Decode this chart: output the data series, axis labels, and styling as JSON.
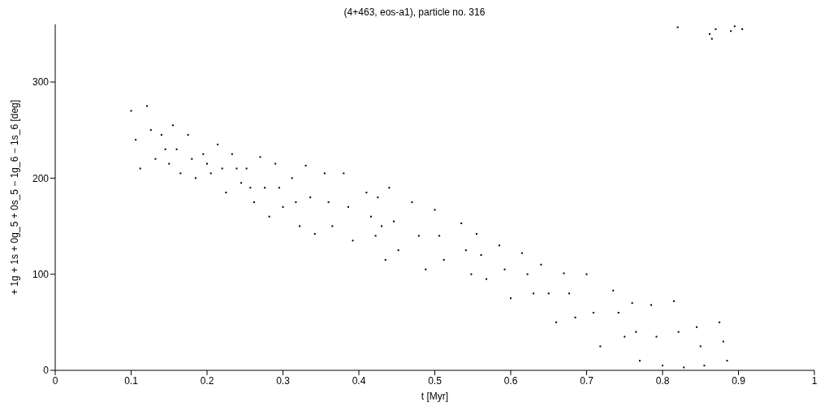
{
  "chart_data": {
    "type": "scatter",
    "title": "(4+463, eos-a1), particle no. 316",
    "xlabel": "t [Myr]",
    "ylabel": "+ 1g + 1s + 0g_5 + 0s_5 − 1g_6 − 1s_6 [deg]",
    "x": [
      0.1,
      0.106,
      0.112,
      0.121,
      0.126,
      0.132,
      0.14,
      0.145,
      0.15,
      0.155,
      0.16,
      0.165,
      0.175,
      0.18,
      0.185,
      0.195,
      0.2,
      0.205,
      0.214,
      0.22,
      0.225,
      0.233,
      0.239,
      0.245,
      0.252,
      0.257,
      0.262,
      0.27,
      0.276,
      0.282,
      0.29,
      0.295,
      0.3,
      0.312,
      0.317,
      0.322,
      0.33,
      0.336,
      0.342,
      0.355,
      0.36,
      0.365,
      0.38,
      0.386,
      0.392,
      0.41,
      0.416,
      0.422,
      0.425,
      0.43,
      0.435,
      0.44,
      0.446,
      0.452,
      0.47,
      0.479,
      0.488,
      0.5,
      0.506,
      0.512,
      0.535,
      0.541,
      0.548,
      0.555,
      0.561,
      0.568,
      0.585,
      0.592,
      0.6,
      0.615,
      0.622,
      0.63,
      0.64,
      0.65,
      0.66,
      0.67,
      0.677,
      0.685,
      0.7,
      0.709,
      0.718,
      0.735,
      0.742,
      0.75,
      0.76,
      0.765,
      0.77,
      0.785,
      0.792,
      0.8,
      0.815,
      0.821,
      0.828,
      0.845,
      0.85,
      0.855,
      0.875,
      0.88,
      0.885,
      0.82,
      0.862,
      0.865,
      0.87,
      0.89,
      0.895,
      0.905
    ],
    "values": [
      270,
      240,
      210,
      275,
      250,
      220,
      245,
      230,
      215,
      255,
      230,
      205,
      245,
      220,
      200,
      225,
      215,
      205,
      235,
      210,
      185,
      225,
      210,
      195,
      210,
      190,
      175,
      222,
      190,
      160,
      215,
      190,
      170,
      200,
      175,
      150,
      213,
      180,
      142,
      205,
      175,
      150,
      205,
      170,
      135,
      185,
      160,
      140,
      180,
      150,
      115,
      190,
      155,
      125,
      175,
      140,
      105,
      167,
      140,
      115,
      153,
      125,
      100,
      142,
      120,
      95,
      130,
      105,
      75,
      122,
      100,
      80,
      110,
      80,
      50,
      101,
      80,
      55,
      100,
      60,
      25,
      83,
      60,
      35,
      70,
      40,
      10,
      68,
      35,
      5,
      72,
      40,
      3,
      45,
      25,
      5,
      50,
      30,
      10,
      357,
      350,
      345,
      355,
      353,
      358,
      355
    ],
    "color": "#000000",
    "marker": "square",
    "xlim": [
      0,
      1
    ],
    "ylim": [
      0,
      360
    ],
    "xticks": [
      0,
      0.1,
      0.2,
      0.3,
      0.4,
      0.5,
      0.6,
      0.7,
      0.8,
      0.9,
      1
    ],
    "yticks": [
      0,
      100,
      200,
      300
    ],
    "grid": false,
    "legend": false
  }
}
